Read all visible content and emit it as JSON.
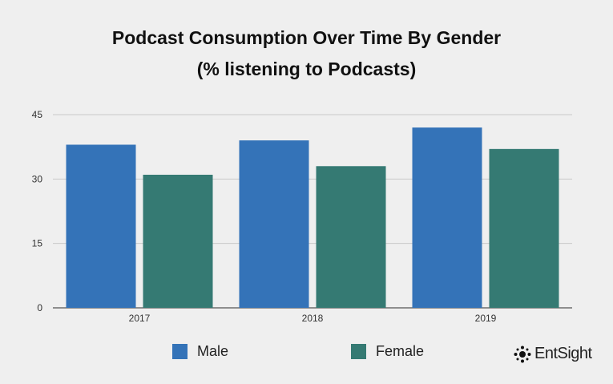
{
  "chart_data": {
    "type": "bar",
    "title": "Podcast Consumption Over Time By Gender",
    "subtitle": "(% listening to Podcasts)",
    "categories": [
      "2017",
      "2018",
      "2019"
    ],
    "series": [
      {
        "name": "Male",
        "color": "#3473b8",
        "values": [
          38,
          39,
          42
        ]
      },
      {
        "name": "Female",
        "color": "#357a73",
        "values": [
          31,
          33,
          37
        ]
      }
    ],
    "y_ticks": [
      0,
      15,
      30,
      45
    ],
    "ylim": [
      0,
      45
    ],
    "grid": true,
    "legend_position": "bottom"
  },
  "brand": {
    "name": "EntSight"
  }
}
